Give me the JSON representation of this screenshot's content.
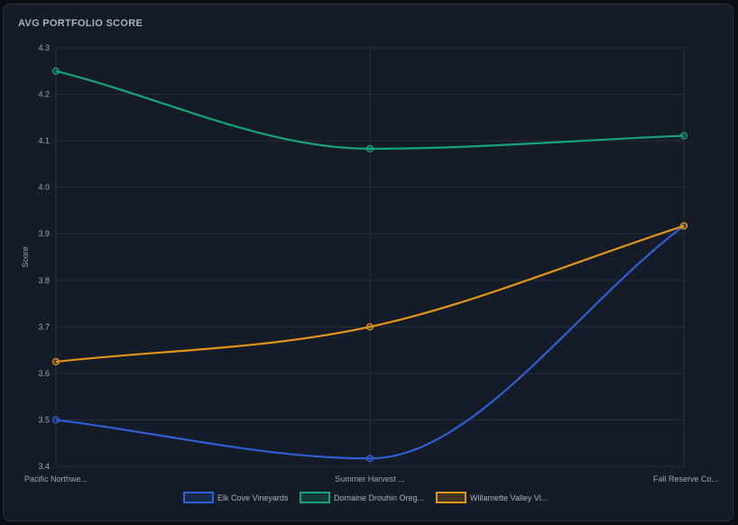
{
  "card": {
    "title": "AVG PORTFOLIO SCORE"
  },
  "chart_data": {
    "type": "line",
    "title": "AVG PORTFOLIO SCORE",
    "xlabel": "",
    "ylabel": "Score",
    "categories": [
      "Pacific Northwe...",
      "Summer Harvest ...",
      "Fall Reserve Co..."
    ],
    "ylim": [
      3.4,
      4.3
    ],
    "yticks": [
      3.4,
      3.5,
      3.6,
      3.7,
      3.8,
      3.9,
      4.0,
      4.1,
      4.2,
      4.3
    ],
    "grid": true,
    "legend_position": "bottom",
    "series": [
      {
        "name": "Elk Cove Vineyards",
        "values": [
          3.5,
          3.417,
          3.917
        ],
        "color": "#2f5fd6"
      },
      {
        "name": "Domaine Drouhin Oreg...",
        "values": [
          4.25,
          4.083,
          4.111
        ],
        "color": "#16a37a"
      },
      {
        "name": "Willamette Valley Vi...",
        "values": [
          3.625,
          3.7,
          3.917
        ],
        "color": "#e0951a"
      }
    ]
  }
}
